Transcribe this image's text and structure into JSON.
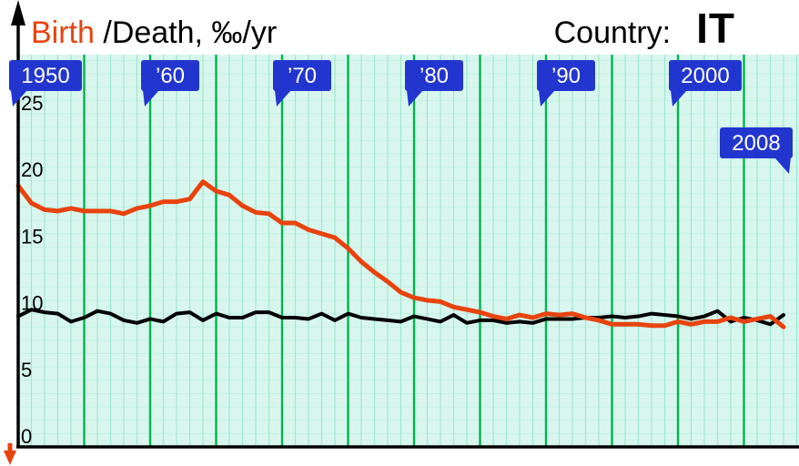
{
  "header": {
    "title_birth": "Birth",
    "title_rest": " /Death, ‰/yr",
    "country_label": "Country:",
    "country_value": "IT"
  },
  "chart_data": {
    "type": "line",
    "title": "Birth /Death, ‰/yr",
    "country": "IT",
    "x_start": 1950,
    "x_end": 2008,
    "ylim": [
      0,
      25
    ],
    "yticks": [
      0,
      5,
      10,
      15,
      20,
      25
    ],
    "grid": {
      "background": "#d9f6ee",
      "minor_vertical": "#9ce9cf",
      "major_vertical": "#00b64e",
      "horizontal": "#c3eee4"
    },
    "flag_color": "#2236cf",
    "flag_text_color": "#ffffff",
    "flags": [
      {
        "label": "1950",
        "year": 1950,
        "row": 0,
        "side": "left"
      },
      {
        "label": "’60",
        "year": 1960,
        "row": 0,
        "side": "left"
      },
      {
        "label": "’70",
        "year": 1970,
        "row": 0,
        "side": "left"
      },
      {
        "label": "’80",
        "year": 1980,
        "row": 0,
        "side": "left"
      },
      {
        "label": "’90",
        "year": 1990,
        "row": 0,
        "side": "left"
      },
      {
        "label": "2000",
        "year": 2000,
        "row": 0,
        "side": "left"
      },
      {
        "label": "2008",
        "year": 2008,
        "row": 1,
        "side": "right"
      }
    ],
    "series": [
      {
        "name": "Birth",
        "color": "#e8430e",
        "width": 5,
        "values": [
          19.6,
          18.3,
          17.8,
          17.7,
          17.9,
          17.7,
          17.7,
          17.7,
          17.5,
          17.9,
          18.1,
          18.4,
          18.4,
          18.6,
          19.9,
          19.2,
          18.9,
          18.1,
          17.6,
          17.5,
          16.8,
          16.8,
          16.3,
          16.0,
          15.7,
          14.9,
          13.9,
          13.1,
          12.4,
          11.6,
          11.2,
          11.0,
          10.9,
          10.5,
          10.3,
          10.1,
          9.8,
          9.6,
          9.9,
          9.7,
          10.0,
          9.9,
          10.0,
          9.7,
          9.5,
          9.2,
          9.2,
          9.2,
          9.1,
          9.1,
          9.4,
          9.2,
          9.4,
          9.4,
          9.7,
          9.4,
          9.6,
          9.8,
          9.0
        ]
      },
      {
        "name": "Death",
        "color": "#000000",
        "width": 4,
        "values": [
          9.8,
          10.3,
          10.1,
          10.0,
          9.4,
          9.7,
          10.2,
          10.0,
          9.5,
          9.3,
          9.6,
          9.4,
          10.0,
          10.1,
          9.5,
          10.0,
          9.7,
          9.7,
          10.1,
          10.1,
          9.7,
          9.7,
          9.6,
          10.0,
          9.5,
          10.0,
          9.7,
          9.6,
          9.5,
          9.4,
          9.8,
          9.6,
          9.4,
          9.9,
          9.3,
          9.5,
          9.5,
          9.3,
          9.4,
          9.3,
          9.6,
          9.6,
          9.6,
          9.7,
          9.7,
          9.8,
          9.7,
          9.8,
          10.0,
          9.9,
          9.8,
          9.6,
          9.8,
          10.2,
          9.4,
          9.7,
          9.5,
          9.2,
          9.9
        ]
      }
    ],
    "legend_position": "none"
  }
}
